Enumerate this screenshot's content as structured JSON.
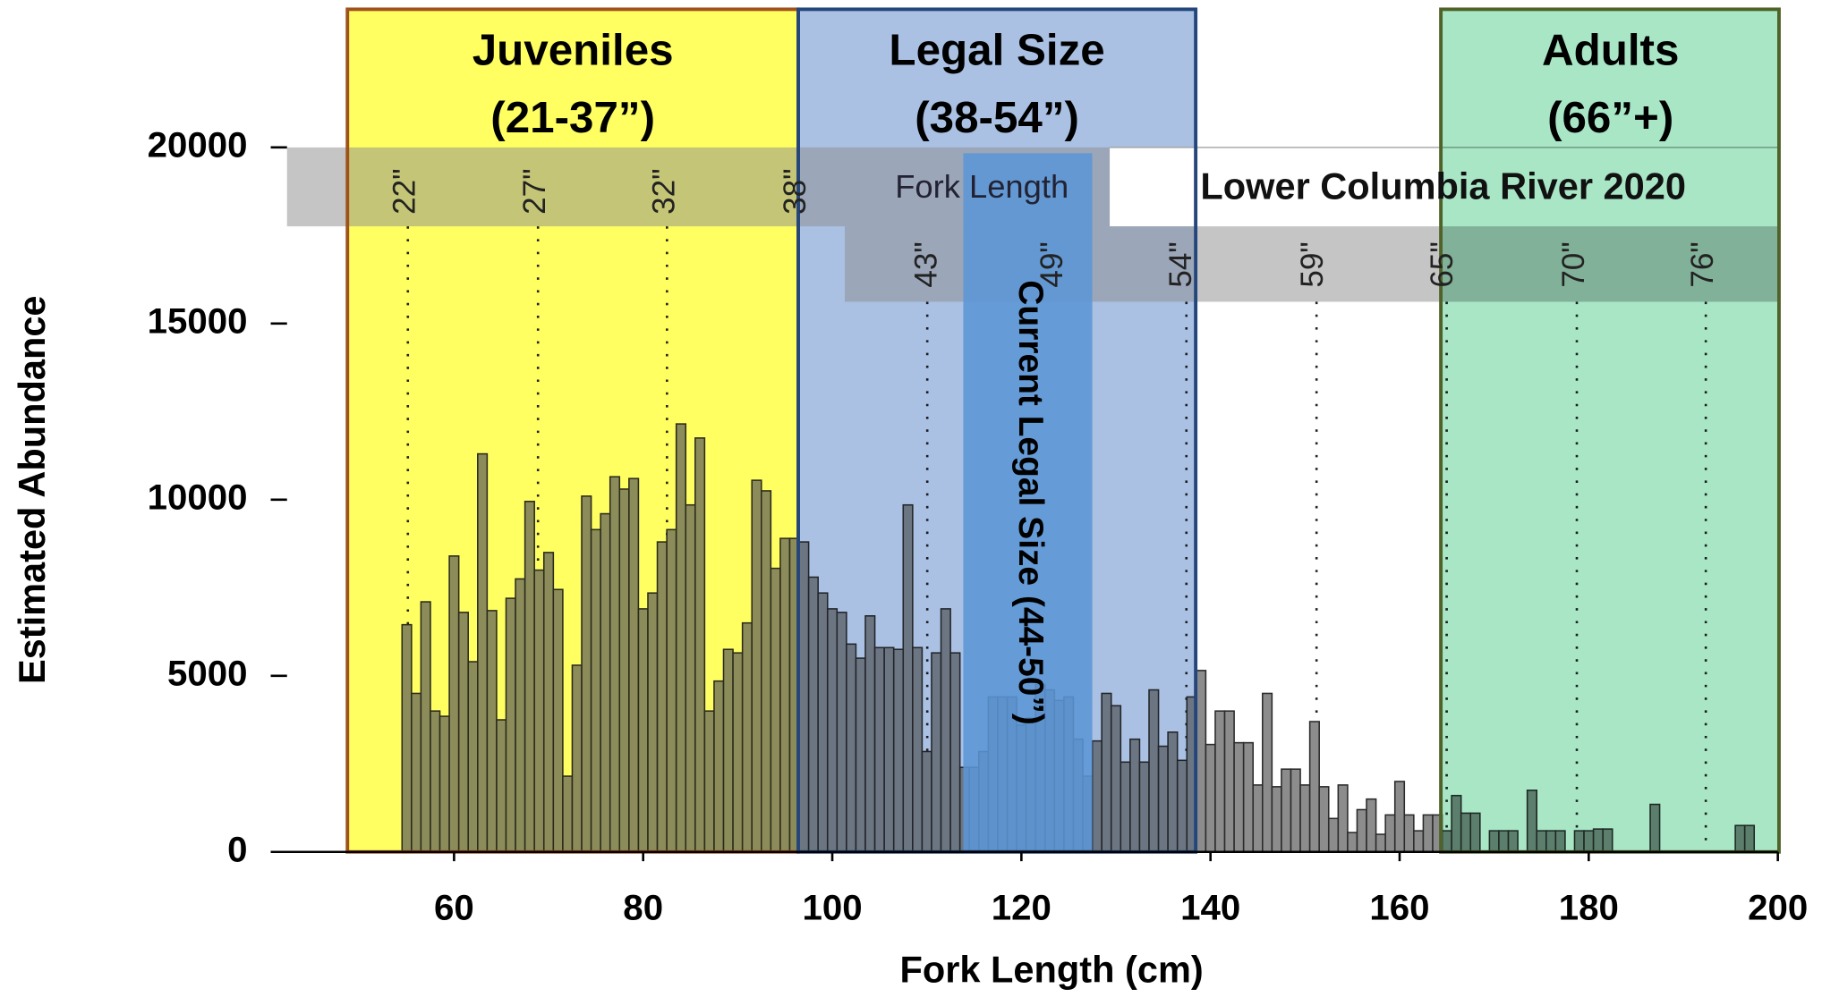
{
  "chart_data": {
    "type": "histogram",
    "title": "Lower Columbia River 2020",
    "x_label": "Fork Length (cm)",
    "y_label": "Estimated Abundance",
    "bins": [
      54.5,
      55.5,
      56.5,
      57.5,
      58.5,
      59.5,
      60.5,
      61.5,
      62.5,
      63.5,
      64.5,
      65.5,
      66.5,
      67.5,
      68.5,
      69.5,
      70.5,
      71.5,
      72.5,
      73.5,
      74.5,
      75.5,
      76.5,
      77.5,
      78.5,
      79.5,
      80.5,
      81.5,
      82.5,
      83.5,
      84.5,
      85.5,
      86.5,
      87.5,
      88.5,
      89.5,
      90.5,
      91.5,
      92.5,
      93.5,
      94.5,
      95.5,
      96.5,
      97.5,
      98.5,
      99.5,
      100.5,
      101.5,
      102.5,
      103.5,
      104.5,
      105.5,
      106.5,
      107.5,
      108.5,
      109.5,
      110.5,
      111.5,
      112.5,
      113.5,
      114.5,
      115.5,
      116.5,
      117.5,
      118.5,
      119.5,
      120.5,
      121.5,
      122.5,
      123.5,
      124.5,
      125.5,
      126.5,
      127.5,
      128.5,
      129.5,
      130.5,
      131.5,
      132.5,
      133.5,
      134.5,
      135.5,
      136.5,
      137.5,
      138.5,
      139.5,
      140.5,
      141.5,
      142.5,
      143.5,
      144.5,
      145.5,
      146.5,
      147.5,
      148.5,
      149.5,
      150.5,
      151.5,
      152.5,
      153.5,
      154.5,
      155.5,
      156.5,
      157.5,
      158.5,
      159.5,
      160.5,
      161.5,
      162.5,
      163.5,
      164.5,
      165.5,
      166.5,
      167.5,
      168.5,
      169.5,
      170.5,
      171.5,
      172.5,
      173.5,
      174.5,
      175.5,
      176.5,
      177.5,
      178.5,
      179.5,
      180.5,
      181.5,
      182.5,
      183.5,
      184.5,
      185.5,
      186.5,
      187.5,
      188.5,
      189.5,
      190.5,
      191.5,
      192.5,
      193.5,
      194.5,
      195.5,
      196.5,
      197.5
    ],
    "values": [
      6450,
      4500,
      7100,
      4000,
      3850,
      8400,
      6800,
      5400,
      11300,
      6850,
      3750,
      7200,
      7750,
      9950,
      8000,
      8500,
      7450,
      2150,
      5300,
      10100,
      9150,
      9600,
      10650,
      10300,
      10600,
      6900,
      7350,
      8800,
      9150,
      12150,
      9850,
      11750,
      4000,
      4850,
      5750,
      5650,
      6500,
      10550,
      10250,
      8050,
      8900,
      8900,
      8800,
      7800,
      7350,
      6900,
      6800,
      5900,
      5500,
      6700,
      5800,
      5800,
      5750,
      9850,
      5800,
      2850,
      5650,
      6900,
      5650,
      2400,
      2400,
      2850,
      4400,
      4400,
      4400,
      3600,
      3800,
      4750,
      4600,
      4300,
      4400,
      3200,
      2150,
      3150,
      4500,
      4150,
      2550,
      3200,
      2550,
      4600,
      3000,
      3400,
      2600,
      4400,
      5150,
      3050,
      4000,
      4000,
      3100,
      3100,
      1900,
      4500,
      1850,
      2350,
      2350,
      1900,
      3700,
      1850,
      950,
      1900,
      550,
      1200,
      1500,
      500,
      1050,
      2000,
      1050,
      600,
      1050,
      1050,
      600,
      1600,
      1100,
      1100,
      0,
      600,
      600,
      600,
      0,
      1750,
      600,
      600,
      600,
      0,
      600,
      600,
      650,
      650,
      0,
      0,
      0,
      0,
      1350,
      0,
      0,
      0,
      0,
      0,
      0,
      0,
      0,
      750,
      750
    ],
    "color": "#8c8c8c",
    "xlim": [
      40,
      200
    ],
    "ylim": [
      0,
      20000
    ],
    "xticks": [
      60,
      80,
      100,
      120,
      140,
      160,
      180,
      200
    ],
    "yticks": [
      0,
      5000,
      10000,
      15000,
      20000
    ],
    "annotations": {
      "regions": [
        {
          "name": "Juveniles",
          "range": "(21-37”)"
        },
        {
          "name": "Legal Size",
          "range": "(38-54”)"
        },
        {
          "name": "Adults",
          "range": "(66”+)"
        }
      ],
      "current_legal": "Current Legal Size (44-50”)",
      "scale_label": "Fork Length",
      "inch_marks": [
        "22\"",
        "27\"",
        "32\"",
        "38\"",
        "43\"",
        "49\"",
        "54\"",
        "59\"",
        "65\"",
        "70\"",
        "76\""
      ]
    }
  }
}
